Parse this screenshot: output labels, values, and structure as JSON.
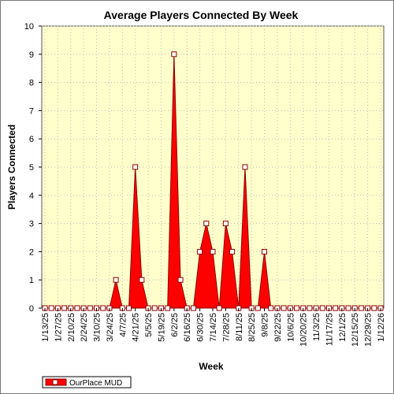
{
  "chart_data": {
    "type": "area",
    "title": "Average Players Connected By Week",
    "xlabel": "Week",
    "ylabel": "Players Connected",
    "ylim": [
      0,
      10
    ],
    "y_ticks": [
      0,
      1,
      2,
      3,
      4,
      5,
      6,
      7,
      8,
      9,
      10
    ],
    "x_tick_labels": [
      "1/13/25",
      "1/27/25",
      "2/10/25",
      "2/24/25",
      "3/10/25",
      "3/24/25",
      "4/7/25",
      "4/21/25",
      "5/5/25",
      "5/19/25",
      "6/2/25",
      "6/16/25",
      "6/30/25",
      "7/14/25",
      "7/28/25",
      "8/11/25",
      "8/25/25",
      "9/8/25",
      "9/22/25",
      "10/6/25",
      "10/20/25",
      "11/3/25",
      "11/17/25",
      "12/1/25",
      "12/15/25",
      "12/29/25",
      "1/12/26"
    ],
    "x": [
      "1/13/25",
      "1/20/25",
      "1/27/25",
      "2/3/25",
      "2/10/25",
      "2/17/25",
      "2/24/25",
      "3/3/25",
      "3/10/25",
      "3/17/25",
      "3/24/25",
      "3/31/25",
      "4/7/25",
      "4/14/25",
      "4/21/25",
      "4/28/25",
      "5/5/25",
      "5/12/25",
      "5/19/25",
      "5/26/25",
      "6/2/25",
      "6/9/25",
      "6/16/25",
      "6/23/25",
      "6/30/25",
      "7/7/25",
      "7/14/25",
      "7/21/25",
      "7/28/25",
      "8/4/25",
      "8/11/25",
      "8/18/25",
      "8/25/25",
      "9/1/25",
      "9/8/25",
      "9/15/25",
      "9/22/25",
      "9/29/25",
      "10/6/25",
      "10/13/25",
      "10/20/25",
      "10/27/25",
      "11/3/25",
      "11/10/25",
      "11/17/25",
      "11/24/25",
      "12/1/25",
      "12/8/25",
      "12/15/25",
      "12/22/25",
      "12/29/25",
      "1/5/26",
      "1/12/26"
    ],
    "series": [
      {
        "name": "OurPlace MUD",
        "color": "#ff0000",
        "values": [
          0,
          0,
          0,
          0,
          0,
          0,
          0,
          0,
          0,
          0,
          0,
          1,
          0,
          0,
          5,
          1,
          0,
          0,
          0,
          0,
          9,
          1,
          0,
          0,
          2,
          3,
          2,
          0,
          3,
          2,
          0,
          5,
          0,
          0,
          2,
          0,
          0,
          0,
          0,
          0,
          0,
          0,
          0,
          0,
          0,
          0,
          0,
          0,
          0,
          0,
          0,
          0,
          0
        ]
      }
    ],
    "grid": true,
    "legend": "bottom-left",
    "colors": {
      "background": "#ffffcc",
      "fill": "#ff0000",
      "line": "#8b0000"
    }
  }
}
